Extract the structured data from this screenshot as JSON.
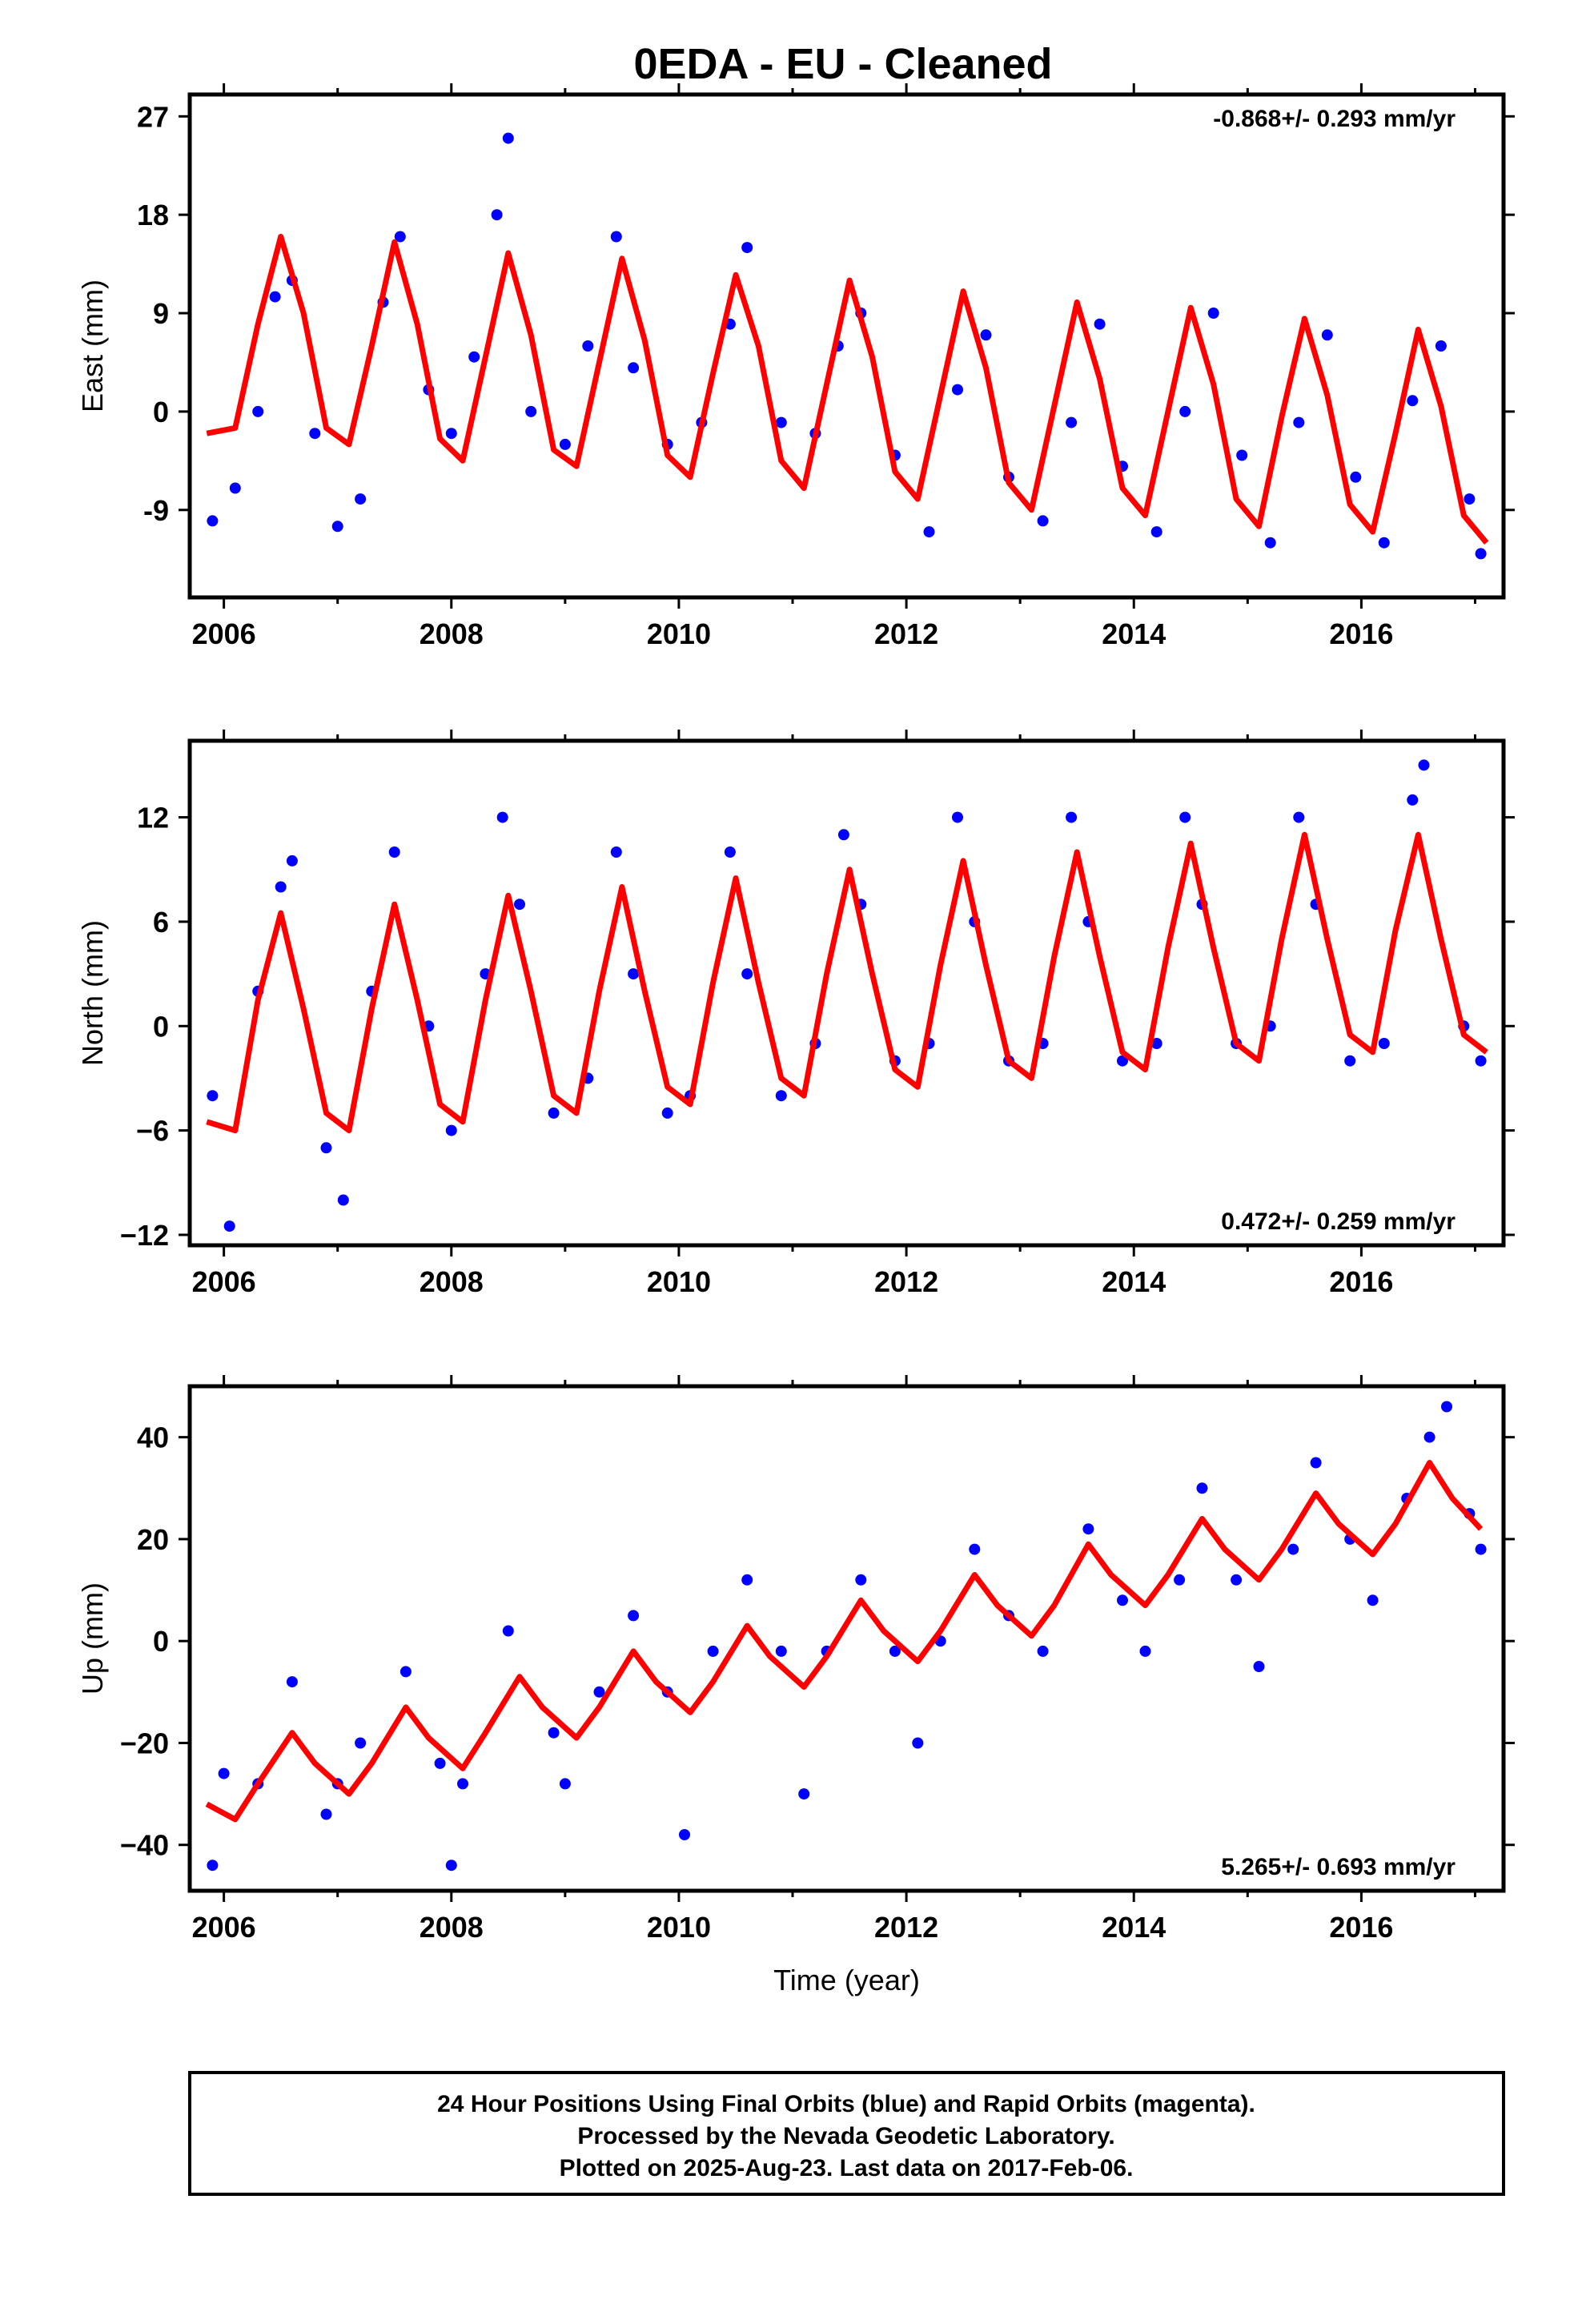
{
  "title": "0EDA  - EU - Cleaned",
  "colors": {
    "data": "#0000ff",
    "model": "#ff0000",
    "frame": "#000000"
  },
  "chart_data": [
    {
      "type": "scatter",
      "ylabel": "East (mm)",
      "xlim": [
        2005.7,
        2017.25
      ],
      "ylim": [
        -17,
        29
      ],
      "xticks": [
        2006,
        2008,
        2010,
        2012,
        2014,
        2016
      ],
      "yticks": [
        -9,
        0,
        9,
        18,
        27
      ],
      "ytick_labels": [
        "-9",
        "0",
        "9",
        "18",
        "27"
      ],
      "rate_label": "-0.868+/- 0.293 mm/yr",
      "rate_position": "top-right",
      "model_curve": {
        "x": [
          2005.85,
          2006.1,
          2006.3,
          2006.5,
          2006.7,
          2006.9,
          2007.1,
          2007.3,
          2007.5,
          2007.7,
          2007.9,
          2008.1,
          2008.3,
          2008.5,
          2008.7,
          2008.9,
          2009.1,
          2009.3,
          2009.5,
          2009.7,
          2009.9,
          2010.1,
          2010.3,
          2010.5,
          2010.7,
          2010.9,
          2011.1,
          2011.3,
          2011.5,
          2011.7,
          2011.9,
          2012.1,
          2012.3,
          2012.5,
          2012.7,
          2012.9,
          2013.1,
          2013.3,
          2013.5,
          2013.7,
          2013.9,
          2014.1,
          2014.3,
          2014.5,
          2014.7,
          2014.9,
          2015.1,
          2015.3,
          2015.5,
          2015.7,
          2015.9,
          2016.1,
          2016.3,
          2016.5,
          2016.7,
          2016.9,
          2017.1
        ],
        "y": [
          -2.0,
          -1.5,
          8.0,
          16.0,
          9.0,
          -1.5,
          -3.0,
          6.0,
          15.5,
          8.0,
          -2.5,
          -4.5,
          5.0,
          14.5,
          7.0,
          -3.5,
          -5.0,
          4.5,
          14.0,
          6.5,
          -4.0,
          -6.0,
          3.5,
          12.5,
          6.0,
          -4.5,
          -7.0,
          2.5,
          12.0,
          5.0,
          -5.5,
          -8.0,
          1.5,
          11.0,
          4.0,
          -6.5,
          -9.0,
          0.5,
          10.0,
          3.0,
          -7.0,
          -9.5,
          0.0,
          9.5,
          2.5,
          -8.0,
          -10.5,
          -0.5,
          8.5,
          1.5,
          -8.5,
          -11.0,
          -2.0,
          7.5,
          0.5,
          -9.5,
          -12.0
        ]
      },
      "observations": {
        "x": [
          2005.9,
          2006.1,
          2006.3,
          2006.45,
          2006.6,
          2006.8,
          2007.0,
          2007.2,
          2007.4,
          2007.55,
          2007.8,
          2008.0,
          2008.2,
          2008.4,
          2008.5,
          2008.7,
          2009.0,
          2009.2,
          2009.45,
          2009.6,
          2009.9,
          2010.2,
          2010.45,
          2010.6,
          2010.9,
          2011.2,
          2011.4,
          2011.6,
          2011.9,
          2012.2,
          2012.45,
          2012.7,
          2012.9,
          2013.2,
          2013.45,
          2013.7,
          2013.9,
          2014.2,
          2014.45,
          2014.7,
          2014.95,
          2015.2,
          2015.45,
          2015.7,
          2015.95,
          2016.2,
          2016.45,
          2016.7,
          2016.95,
          2017.05
        ],
        "y": [
          -10.0,
          -7.0,
          0.0,
          10.5,
          12.0,
          -2.0,
          -10.5,
          -8.0,
          10.0,
          16.0,
          2.0,
          -2.0,
          5.0,
          18.0,
          25.0,
          0.0,
          -3.0,
          6.0,
          16.0,
          4.0,
          -3.0,
          -1.0,
          8.0,
          15.0,
          -1.0,
          -2.0,
          6.0,
          9.0,
          -4.0,
          -11.0,
          2.0,
          7.0,
          -6.0,
          -10.0,
          -1.0,
          8.0,
          -5.0,
          -11.0,
          0.0,
          9.0,
          -4.0,
          -12.0,
          -1.0,
          7.0,
          -6.0,
          -12.0,
          1.0,
          6.0,
          -8.0,
          -13.0
        ]
      }
    },
    {
      "type": "scatter",
      "ylabel": "North (mm)",
      "xlim": [
        2005.7,
        2017.25
      ],
      "ylim": [
        -12.6,
        16.4
      ],
      "xticks": [
        2006,
        2008,
        2010,
        2012,
        2014,
        2016
      ],
      "yticks": [
        -12,
        -6,
        0,
        6,
        12
      ],
      "ytick_labels": [
        "−12",
        "−6",
        "0",
        "6",
        "12"
      ],
      "rate_label": "0.472+/- 0.259 mm/yr",
      "rate_position": "bottom-right",
      "model_curve": {
        "x": [
          2005.85,
          2006.1,
          2006.3,
          2006.5,
          2006.7,
          2006.9,
          2007.1,
          2007.3,
          2007.5,
          2007.7,
          2007.9,
          2008.1,
          2008.3,
          2008.5,
          2008.7,
          2008.9,
          2009.1,
          2009.3,
          2009.5,
          2009.7,
          2009.9,
          2010.1,
          2010.3,
          2010.5,
          2010.7,
          2010.9,
          2011.1,
          2011.3,
          2011.5,
          2011.7,
          2011.9,
          2012.1,
          2012.3,
          2012.5,
          2012.7,
          2012.9,
          2013.1,
          2013.3,
          2013.5,
          2013.7,
          2013.9,
          2014.1,
          2014.3,
          2014.5,
          2014.7,
          2014.9,
          2015.1,
          2015.3,
          2015.5,
          2015.7,
          2015.9,
          2016.1,
          2016.3,
          2016.5,
          2016.7,
          2016.9,
          2017.1
        ],
        "y": [
          -5.5,
          -6.0,
          1.5,
          6.5,
          1.0,
          -5.0,
          -6.0,
          1.0,
          7.0,
          1.5,
          -4.5,
          -5.5,
          1.5,
          7.5,
          2.0,
          -4.0,
          -5.0,
          2.0,
          8.0,
          2.0,
          -3.5,
          -4.5,
          2.5,
          8.5,
          2.5,
          -3.0,
          -4.0,
          3.0,
          9.0,
          3.0,
          -2.5,
          -3.5,
          3.5,
          9.5,
          3.5,
          -2.0,
          -3.0,
          4.0,
          10.0,
          4.0,
          -1.5,
          -2.5,
          4.5,
          10.5,
          4.5,
          -1.0,
          -2.0,
          5.0,
          11.0,
          5.0,
          -0.5,
          -1.5,
          5.5,
          11.0,
          5.0,
          -0.5,
          -1.5
        ]
      },
      "observations": {
        "x": [
          2005.9,
          2006.05,
          2006.3,
          2006.5,
          2006.6,
          2006.9,
          2007.05,
          2007.3,
          2007.5,
          2007.8,
          2008.0,
          2008.3,
          2008.45,
          2008.6,
          2008.9,
          2009.2,
          2009.45,
          2009.6,
          2009.9,
          2010.1,
          2010.45,
          2010.6,
          2010.9,
          2011.2,
          2011.45,
          2011.6,
          2011.9,
          2012.2,
          2012.45,
          2012.6,
          2012.9,
          2013.2,
          2013.45,
          2013.6,
          2013.9,
          2014.2,
          2014.45,
          2014.6,
          2014.9,
          2015.2,
          2015.45,
          2015.6,
          2015.9,
          2016.2,
          2016.45,
          2016.55,
          2016.9,
          2017.05
        ],
        "y": [
          -4.0,
          -11.5,
          2.0,
          8.0,
          9.5,
          -7.0,
          -10.0,
          2.0,
          10.0,
          0.0,
          -6.0,
          3.0,
          12.0,
          7.0,
          -5.0,
          -3.0,
          10.0,
          3.0,
          -5.0,
          -4.0,
          10.0,
          3.0,
          -4.0,
          -1.0,
          11.0,
          7.0,
          -2.0,
          -1.0,
          12.0,
          6.0,
          -2.0,
          -1.0,
          12.0,
          6.0,
          -2.0,
          -1.0,
          12.0,
          7.0,
          -1.0,
          0.0,
          12.0,
          7.0,
          -2.0,
          -1.0,
          13.0,
          15.0,
          0.0,
          -2.0
        ]
      }
    },
    {
      "type": "scatter",
      "ylabel": "Up (mm)",
      "xlabel": "Time (year)",
      "xlim": [
        2005.7,
        2017.25
      ],
      "ylim": [
        -49,
        50
      ],
      "xticks": [
        2006,
        2008,
        2010,
        2012,
        2014,
        2016
      ],
      "yticks": [
        -40,
        -20,
        0,
        20,
        40
      ],
      "ytick_labels": [
        "−40",
        "−20",
        "0",
        "20",
        "40"
      ],
      "rate_label": "5.265+/- 0.693 mm/yr",
      "rate_position": "bottom-right",
      "model_curve": {
        "x": [
          2005.85,
          2006.1,
          2006.3,
          2006.6,
          2006.8,
          2007.1,
          2007.3,
          2007.6,
          2007.8,
          2008.1,
          2008.3,
          2008.6,
          2008.8,
          2009.1,
          2009.3,
          2009.6,
          2009.8,
          2010.1,
          2010.3,
          2010.6,
          2010.8,
          2011.1,
          2011.3,
          2011.6,
          2011.8,
          2012.1,
          2012.3,
          2012.6,
          2012.8,
          2013.1,
          2013.3,
          2013.6,
          2013.8,
          2014.1,
          2014.3,
          2014.6,
          2014.8,
          2015.1,
          2015.3,
          2015.6,
          2015.8,
          2016.1,
          2016.3,
          2016.6,
          2016.8,
          2017.05
        ],
        "y": [
          -32.0,
          -35.0,
          -28.0,
          -18.0,
          -24.0,
          -30.0,
          -24.0,
          -13.0,
          -19.0,
          -25.0,
          -18.0,
          -7.0,
          -13.0,
          -19.0,
          -13.0,
          -2.0,
          -8.0,
          -14.0,
          -8.0,
          3.0,
          -3.0,
          -9.0,
          -3.0,
          8.0,
          2.0,
          -4.0,
          2.0,
          13.0,
          7.0,
          1.0,
          7.0,
          19.0,
          13.0,
          7.0,
          13.0,
          24.0,
          18.0,
          12.0,
          18.0,
          29.0,
          23.0,
          17.0,
          23.0,
          35.0,
          28.0,
          22.0
        ]
      },
      "observations": {
        "x": [
          2005.9,
          2006.0,
          2006.3,
          2006.6,
          2006.9,
          2007.0,
          2007.2,
          2007.6,
          2007.9,
          2008.0,
          2008.1,
          2008.5,
          2008.9,
          2009.0,
          2009.3,
          2009.6,
          2009.9,
          2010.05,
          2010.3,
          2010.6,
          2010.9,
          2011.1,
          2011.3,
          2011.6,
          2011.9,
          2012.1,
          2012.3,
          2012.6,
          2012.9,
          2013.2,
          2013.6,
          2013.9,
          2014.1,
          2014.4,
          2014.6,
          2014.9,
          2015.1,
          2015.4,
          2015.6,
          2015.9,
          2016.1,
          2016.4,
          2016.6,
          2016.75,
          2016.95,
          2017.05
        ],
        "y": [
          -44.0,
          -26.0,
          -28.0,
          -8.0,
          -34.0,
          -28.0,
          -20.0,
          -6.0,
          -24.0,
          -44.0,
          -28.0,
          2.0,
          -18.0,
          -28.0,
          -10.0,
          5.0,
          -10.0,
          -38.0,
          -2.0,
          12.0,
          -2.0,
          -30.0,
          -2.0,
          12.0,
          -2.0,
          -20.0,
          0.0,
          18.0,
          5.0,
          -2.0,
          22.0,
          8.0,
          -2.0,
          12.0,
          30.0,
          12.0,
          -5.0,
          18.0,
          35.0,
          20.0,
          8.0,
          28.0,
          40.0,
          46.0,
          25.0,
          18.0
        ]
      }
    }
  ],
  "footer": {
    "line1": "24 Hour Positions Using Final Orbits (blue) and Rapid Orbits (magenta).",
    "line2": "Processed by the Nevada Geodetic Laboratory.",
    "line3": "Plotted on 2025-Aug-23. Last data on 2017-Feb-06."
  }
}
